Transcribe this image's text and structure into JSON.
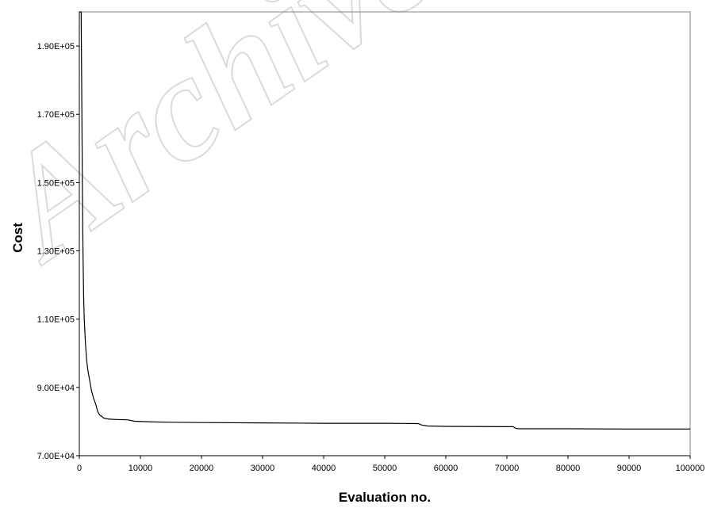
{
  "watermark": "Archive",
  "chart_data": {
    "type": "line",
    "title": "",
    "xlabel": "Evaluation no.",
    "ylabel": "Cost",
    "xlim": [
      0,
      100000
    ],
    "ylim": [
      70000,
      200000
    ],
    "x_ticks": [
      0,
      10000,
      20000,
      30000,
      40000,
      50000,
      60000,
      70000,
      80000,
      90000,
      100000
    ],
    "x_tick_labels": [
      "0",
      "10000",
      "20000",
      "30000",
      "40000",
      "50000",
      "60000",
      "70000",
      "80000",
      "90000",
      "100000"
    ],
    "y_ticks": [
      70000,
      90000,
      110000,
      130000,
      150000,
      170000,
      190000
    ],
    "y_tick_labels": [
      "7.00E+04",
      "9.00E+04",
      "1.10E+05",
      "1.30E+05",
      "1.50E+05",
      "1.70E+05",
      "1.90E+05"
    ],
    "grid": false,
    "legend": false,
    "line_color": "#000000",
    "series": [
      {
        "x": [
          0,
          300,
          400,
          500,
          600,
          700,
          800,
          1000,
          1200,
          1400,
          1700,
          2000,
          2300,
          2700,
          3000,
          3300,
          3700,
          4000,
          4500,
          5000,
          6000,
          8000,
          9000,
          12000,
          15000,
          20000,
          30000,
          40000,
          50000,
          55500,
          56000,
          57000,
          60000,
          70000,
          71000,
          71500,
          72000,
          80000,
          90000,
          100000
        ],
        "y": [
          200000,
          200000,
          175000,
          150000,
          130000,
          117000,
          110000,
          103000,
          98000,
          95000,
          92000,
          89000,
          87000,
          85000,
          83000,
          82000,
          81500,
          81000,
          80800,
          80700,
          80600,
          80500,
          80100,
          79900,
          79800,
          79700,
          79600,
          79500,
          79500,
          79400,
          79000,
          78700,
          78600,
          78500,
          78500,
          78000,
          77900,
          77900,
          77800,
          77800
        ]
      }
    ]
  }
}
